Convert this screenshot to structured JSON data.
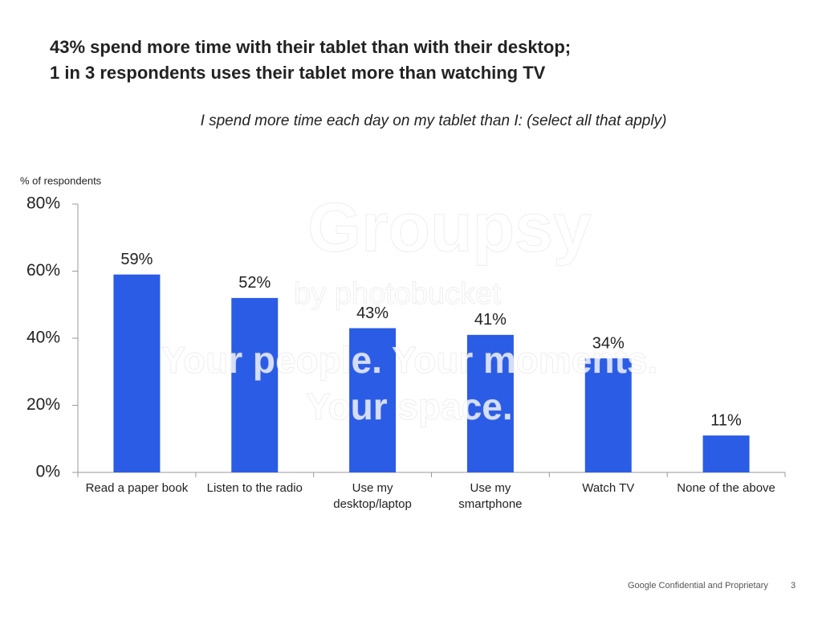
{
  "chart_data": {
    "type": "bar",
    "title": [
      "43% spend more time with their tablet than with their desktop;",
      "1 in 3 respondents uses their tablet more than watching TV"
    ],
    "subtitle": "I spend more time each day on my tablet than I: (select all that apply)",
    "y_label": "% of respondents",
    "categories": [
      "Read a paper book",
      "Listen to the radio",
      "Use my\ndesktop/laptop",
      "Use my\nsmartphone",
      "Watch TV",
      "None of the above"
    ],
    "values": [
      59,
      52,
      43,
      41,
      34,
      11
    ],
    "value_labels": [
      "59%",
      "52%",
      "43%",
      "41%",
      "34%",
      "11%"
    ],
    "color": "#2b5ce6",
    "ylim": [
      0,
      80
    ],
    "yticks": [
      {
        "value": 0,
        "label": "0%"
      },
      {
        "value": 20,
        "label": "20%"
      },
      {
        "value": 40,
        "label": "40%"
      },
      {
        "value": 60,
        "label": "60%"
      },
      {
        "value": 80,
        "label": "80%"
      }
    ],
    "grid": false
  },
  "watermark": [
    "Groupsy",
    "by photobucket",
    "Your people. Your moments.",
    "Your space."
  ],
  "footer": {
    "text": "Google Confidential and Proprietary",
    "page": "3"
  }
}
